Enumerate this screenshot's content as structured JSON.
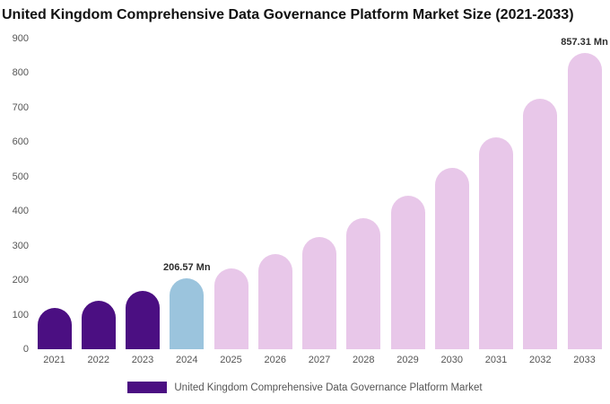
{
  "title": "United Kingdom Comprehensive Data Governance Platform Market Size (2021-2033)",
  "legend": {
    "label": "United Kingdom Comprehensive Data Governance Platform Market",
    "swatch_color": "#4b0f82"
  },
  "colors": {
    "historical_bar": "#4b0f82",
    "current_bar": "#9bc4dd",
    "forecast_bar": "#e8c7e9",
    "background": "#ffffff",
    "title_text": "#111111",
    "axis_text": "#555555",
    "data_label_text": "#2d2d2d"
  },
  "chart_data": {
    "type": "bar",
    "title": "United Kingdom Comprehensive Data Governance Platform Market Size (2021-2033)",
    "xlabel": "",
    "ylabel": "",
    "ylim": [
      0,
      900
    ],
    "yticks": [
      0,
      100,
      200,
      300,
      400,
      500,
      600,
      700,
      800,
      900
    ],
    "grid": false,
    "legend_position": "bottom",
    "categories": [
      "2021",
      "2022",
      "2023",
      "2024",
      "2025",
      "2026",
      "2027",
      "2028",
      "2029",
      "2030",
      "2031",
      "2032",
      "2033"
    ],
    "values": [
      120,
      141,
      170,
      206.57,
      235,
      275,
      325,
      380,
      445,
      525,
      615,
      725,
      857.31
    ],
    "data_labels": [
      "",
      "",
      "",
      "206.57 Mn",
      "",
      "",
      "",
      "",
      "",
      "",
      "",
      "",
      "857.31 Mn"
    ],
    "point_colors": [
      "#4b0f82",
      "#4b0f82",
      "#4b0f82",
      "#9bc4dd",
      "#e8c7e9",
      "#e8c7e9",
      "#e8c7e9",
      "#e8c7e9",
      "#e8c7e9",
      "#e8c7e9",
      "#e8c7e9",
      "#e8c7e9",
      "#e8c7e9"
    ],
    "series": [
      {
        "name": "United Kingdom Comprehensive Data Governance Platform Market",
        "values": [
          120,
          141,
          170,
          206.57,
          235,
          275,
          325,
          380,
          445,
          525,
          615,
          725,
          857.31
        ]
      }
    ]
  }
}
